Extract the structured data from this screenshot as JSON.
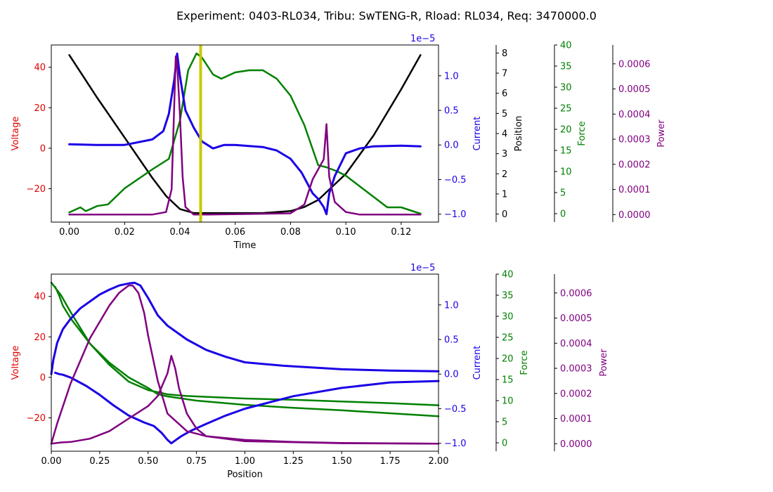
{
  "title": "Experiment: 0403-RL034, Tribu: SwTENG-R, Rload: RL034, Req: 3470000.0",
  "colors": {
    "voltage": "#e00000",
    "current": "#1a00e6",
    "position": "#000000",
    "force": "#008000",
    "power": "#800080",
    "marker": "#c8c800"
  },
  "chart_data": [
    {
      "type": "line",
      "xlabel": "Time",
      "xlim": [
        -0.0065,
        0.1335
      ],
      "x_ticks": [
        "0.00",
        "0.02",
        "0.04",
        "0.06",
        "0.08",
        "0.10",
        "0.12"
      ],
      "x_tick_values": [
        0,
        0.02,
        0.04,
        0.06,
        0.08,
        0.1,
        0.12
      ],
      "marker_x": 0.0475,
      "axes": {
        "voltage": {
          "label": "Voltage",
          "ylim": [
            -36.5,
            51
          ],
          "ticks": [
            "−20",
            "0",
            "20",
            "40"
          ],
          "tick_values": [
            -20,
            0,
            20,
            40
          ]
        },
        "current": {
          "label": "Current",
          "ylim": [
            -1.115e-05,
            1.445e-05
          ],
          "offset_label": "1e−5",
          "ticks": [
            "−1.0",
            "−0.5",
            "0.0",
            "0.5",
            "1.0"
          ],
          "tick_values": [
            -1e-05,
            -5e-06,
            0,
            5e-06,
            1e-05
          ]
        },
        "position": {
          "label": "Position",
          "ylim": [
            -0.4,
            8.4
          ],
          "ticks": [
            "0",
            "1",
            "2",
            "3",
            "4",
            "5",
            "6",
            "7",
            "8"
          ],
          "tick_values": [
            0,
            1,
            2,
            3,
            4,
            5,
            6,
            7,
            8
          ]
        },
        "force": {
          "label": "Force",
          "ylim": [
            -2,
            40
          ],
          "ticks": [
            "0",
            "5",
            "10",
            "15",
            "20",
            "25",
            "30",
            "35",
            "40"
          ],
          "tick_values": [
            0,
            5,
            10,
            15,
            20,
            25,
            30,
            35,
            40
          ]
        },
        "power": {
          "label": "Power",
          "ylim": [
            -3e-05,
            0.000675
          ],
          "ticks": [
            "0.0000",
            "0.0001",
            "0.0002",
            "0.0003",
            "0.0004",
            "0.0005",
            "0.0006"
          ],
          "tick_values": [
            0,
            0.0001,
            0.0002,
            0.0003,
            0.0004,
            0.0005,
            0.0006
          ]
        }
      },
      "series": [
        {
          "key": "position",
          "x": [
            0,
            0.01,
            0.02,
            0.03,
            0.035,
            0.04,
            0.045,
            0.05,
            0.06,
            0.07,
            0.08,
            0.085,
            0.09,
            0.1,
            0.11,
            0.12,
            0.127
          ],
          "y": [
            7.9,
            5.8,
            3.8,
            1.8,
            0.9,
            0.25,
            0.05,
            0.05,
            0.05,
            0.05,
            0.15,
            0.35,
            0.7,
            2.0,
            3.9,
            6.2,
            7.9
          ]
        },
        {
          "key": "force",
          "x": [
            0,
            0.004,
            0.006,
            0.01,
            0.014,
            0.02,
            0.03,
            0.036,
            0.04,
            0.043,
            0.046,
            0.048,
            0.052,
            0.055,
            0.06,
            0.065,
            0.07,
            0.075,
            0.08,
            0.085,
            0.09,
            0.093,
            0.097,
            0.1,
            0.105,
            0.11,
            0.115,
            0.12,
            0.127
          ],
          "y": [
            0.3,
            1.5,
            0.6,
            1.8,
            2.2,
            6,
            10.5,
            13,
            22,
            34,
            38,
            37,
            33,
            32,
            33.5,
            34,
            34,
            32,
            28,
            21,
            11.5,
            11,
            10,
            9,
            6.5,
            4,
            1.5,
            1.5,
            0
          ]
        },
        {
          "key": "current",
          "x": [
            0,
            0.01,
            0.02,
            0.03,
            0.034,
            0.036,
            0.038,
            0.039,
            0.04,
            0.042,
            0.045,
            0.048,
            0.052,
            0.056,
            0.06,
            0.07,
            0.075,
            0.08,
            0.084,
            0.088,
            0.09,
            0.092,
            0.093,
            0.094,
            0.096,
            0.1,
            0.105,
            0.11,
            0.12,
            0.127
          ],
          "y": [
            1e-07,
            0.0,
            0.0,
            8e-07,
            2e-06,
            4.5e-06,
            9.5e-06,
            1.32e-05,
            1e-05,
            5e-06,
            2.5e-06,
            5e-07,
            -5e-07,
            0.0,
            0.0,
            -3e-07,
            -8e-07,
            -2e-06,
            -4e-06,
            -7e-06,
            -7.8e-06,
            -9e-06,
            -1e-05,
            -7e-06,
            -4.5e-06,
            -1.2e-06,
            -5e-07,
            -2e-07,
            -1e-07,
            -2e-07
          ]
        },
        {
          "key": "power",
          "x": [
            0,
            0.03,
            0.035,
            0.037,
            0.038,
            0.0385,
            0.039,
            0.04,
            0.041,
            0.042,
            0.045,
            0.05,
            0.08,
            0.085,
            0.088,
            0.09,
            0.092,
            0.093,
            0.094,
            0.096,
            0.1,
            0.105,
            0.127
          ],
          "y": [
            0,
            0,
            1e-05,
            0.0001,
            0.00045,
            0.00063,
            0.0006,
            0.0004,
            0.00015,
            3e-05,
            0,
            0,
            5e-06,
            4e-05,
            0.00014,
            0.00018,
            0.00022,
            0.00036,
            0.00015,
            5e-05,
            1e-05,
            0,
            0
          ]
        }
      ]
    },
    {
      "type": "line",
      "xlabel": "Position",
      "xlim": [
        0,
        2
      ],
      "x_ticks": [
        "0.00",
        "0.25",
        "0.50",
        "0.75",
        "1.00",
        "1.25",
        "1.50",
        "1.75",
        "2.00"
      ],
      "x_tick_values": [
        0,
        0.25,
        0.5,
        0.75,
        1.0,
        1.25,
        1.5,
        1.75,
        2.0
      ],
      "axes": {
        "voltage": {
          "label": "Voltage",
          "ylim": [
            -36.5,
            51
          ],
          "ticks": [
            "−20",
            "0",
            "20",
            "40"
          ],
          "tick_values": [
            -20,
            0,
            20,
            40
          ]
        },
        "current": {
          "label": "Current",
          "ylim": [
            -1.115e-05,
            1.445e-05
          ],
          "offset_label": "1e−5",
          "ticks": [
            "−1.0",
            "−0.5",
            "0.0",
            "0.5",
            "1.0"
          ],
          "tick_values": [
            -1e-05,
            -5e-06,
            0,
            5e-06,
            1e-05
          ]
        },
        "force": {
          "label": "Force",
          "ylim": [
            -2,
            40
          ],
          "ticks": [
            "0",
            "5",
            "10",
            "15",
            "20",
            "25",
            "30",
            "35",
            "40"
          ],
          "tick_values": [
            0,
            5,
            10,
            15,
            20,
            25,
            30,
            35,
            40
          ]
        },
        "power": {
          "label": "Power",
          "ylim": [
            -3e-05,
            0.000675
          ],
          "ticks": [
            "0.0000",
            "0.0001",
            "0.0002",
            "0.0003",
            "0.0004",
            "0.0005",
            "0.0006"
          ],
          "tick_values": [
            0,
            0.0001,
            0.0002,
            0.0003,
            0.0004,
            0.0005,
            0.0006
          ]
        }
      },
      "series": [
        {
          "key": "current",
          "x": [
            0,
            0.01,
            0.03,
            0.06,
            0.1,
            0.15,
            0.2,
            0.25,
            0.3,
            0.35,
            0.4,
            0.43,
            0.46,
            0.5,
            0.55,
            0.6,
            0.7,
            0.8,
            0.9,
            1.0,
            1.2,
            1.5,
            1.75,
            2.0
          ],
          "y": [
            0.0,
            2e-06,
            4.5e-06,
            6.5e-06,
            8e-06,
            9.5e-06,
            1.05e-05,
            1.15e-05,
            1.22e-05,
            1.28e-05,
            1.31e-05,
            1.32e-05,
            1.28e-05,
            1.1e-05,
            8.5e-06,
            7e-06,
            5e-06,
            3.5e-06,
            2.5e-06,
            1.7e-06,
            1.2e-06,
            7e-07,
            5e-07,
            4e-07
          ]
        },
        {
          "key": "current",
          "x": [
            2.0,
            1.75,
            1.5,
            1.25,
            1.0,
            0.9,
            0.8,
            0.72,
            0.67,
            0.64,
            0.62,
            0.6,
            0.57,
            0.53,
            0.48,
            0.4,
            0.32,
            0.25,
            0.18,
            0.1,
            0.06,
            0.04,
            0.02
          ],
          "y": [
            -1e-06,
            -1.2e-06,
            -2e-06,
            -3.2e-06,
            -5e-06,
            -6e-06,
            -7.2e-06,
            -8.2e-06,
            -9e-06,
            -9.6e-06,
            -1e-05,
            -9.5e-06,
            -8.5e-06,
            -7.5e-06,
            -7e-06,
            -6e-06,
            -4.5e-06,
            -3e-06,
            -1.7e-06,
            -5e-07,
            -1e-07,
            0.0,
            2e-07
          ]
        },
        {
          "key": "force",
          "x": [
            0,
            0.05,
            0.1,
            0.2,
            0.3,
            0.4,
            0.5,
            0.55,
            0.6,
            0.75,
            1.0,
            1.25,
            1.5,
            1.75,
            2.0
          ],
          "y": [
            38,
            35,
            31,
            23.5,
            19,
            15.5,
            13,
            11.5,
            11,
            10,
            9,
            8.3,
            7.7,
            7.0,
            6.3
          ]
        },
        {
          "key": "force",
          "x": [
            0.02,
            0.04,
            0.06,
            0.1,
            0.2,
            0.3,
            0.4,
            0.5,
            0.6,
            0.7,
            0.75,
            1.0,
            1.25,
            1.5,
            1.75,
            2.0
          ],
          "y": [
            37,
            35,
            32.5,
            29.5,
            23.5,
            18.5,
            14.5,
            12.5,
            11.5,
            11.1,
            11,
            10.5,
            10.2,
            9.8,
            9.4,
            8.9
          ]
        },
        {
          "key": "power",
          "x": [
            0,
            0.03,
            0.1,
            0.2,
            0.3,
            0.35,
            0.4,
            0.42,
            0.45,
            0.48,
            0.5,
            0.55,
            0.6,
            0.7,
            0.8,
            1.0,
            1.25,
            1.5,
            2.0
          ],
          "y": [
            0,
            8e-05,
            0.00024,
            0.00042,
            0.00055,
            0.0006,
            0.00063,
            0.00063,
            0.0006,
            0.00052,
            0.00043,
            0.00025,
            0.00012,
            5e-05,
            3e-05,
            1.5e-05,
            7e-06,
            3e-06,
            0
          ]
        },
        {
          "key": "power",
          "x": [
            0.0,
            0.05,
            0.1,
            0.2,
            0.3,
            0.4,
            0.5,
            0.55,
            0.6,
            0.62,
            0.64,
            0.66,
            0.7,
            0.75,
            0.8,
            1.0,
            1.5,
            2.0
          ],
          "y": [
            0.0,
            5e-06,
            7e-06,
            2e-05,
            5e-05,
            0.0001,
            0.00015,
            0.00019,
            0.00028,
            0.00035,
            0.0003,
            0.00022,
            0.00012,
            6e-05,
            3e-05,
            1e-05,
            2e-06,
            0
          ]
        }
      ]
    }
  ]
}
